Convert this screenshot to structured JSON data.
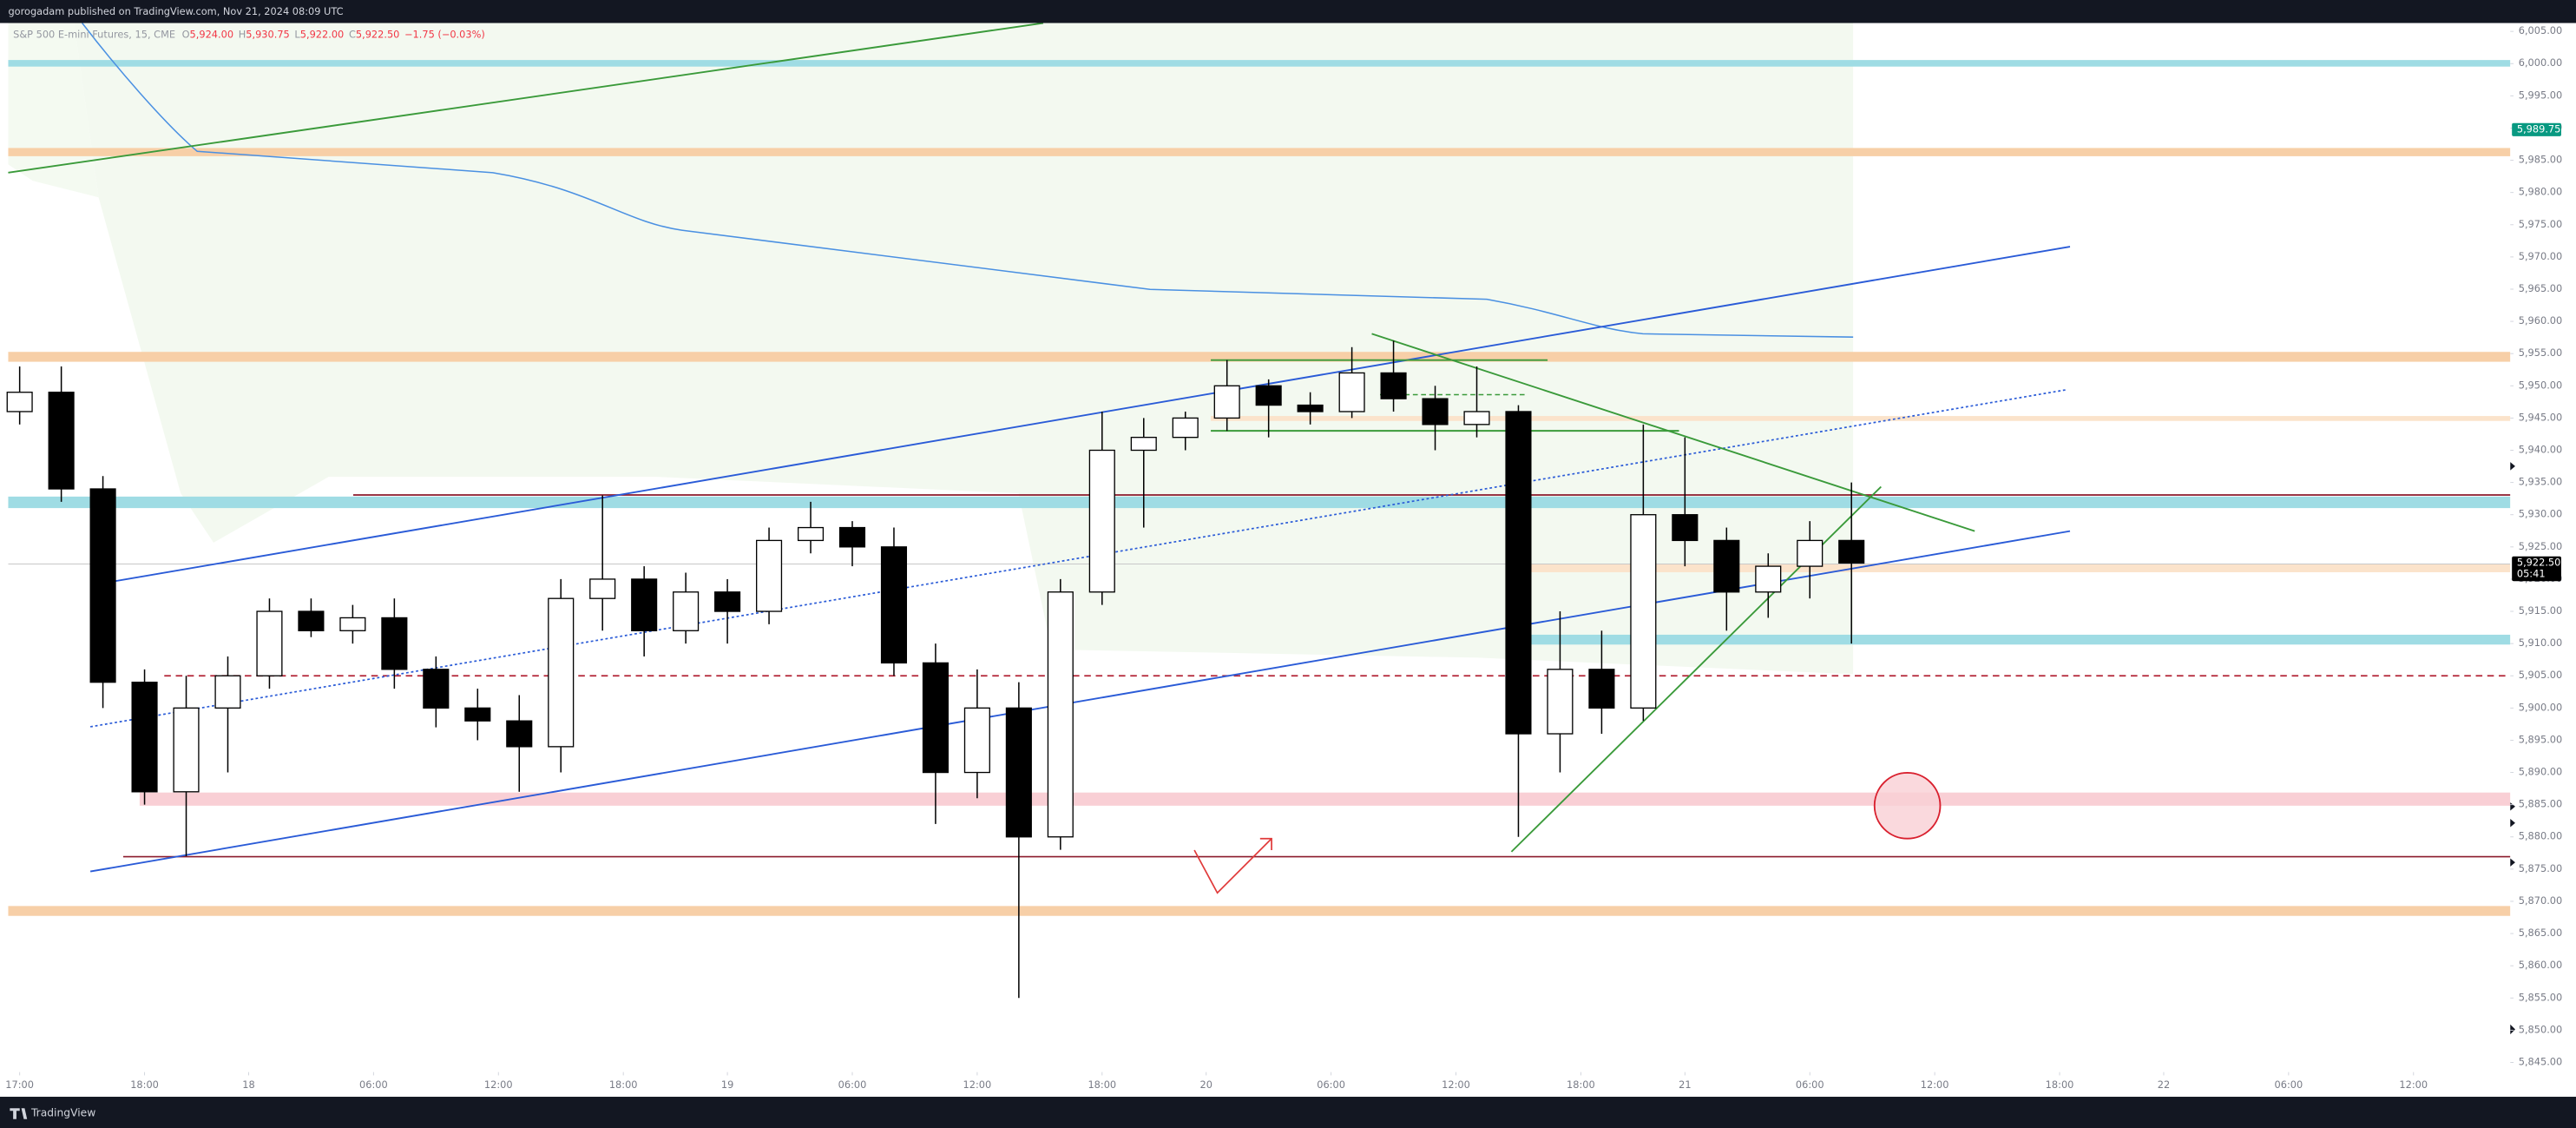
{
  "header": {
    "publisher": "gorogadam published on TradingView.com, Nov 21, 2024 08:09 UTC"
  },
  "footer": {
    "brand": "TradingView"
  },
  "chart_data": {
    "type": "candlestick",
    "title": "S&P 500 E-mini Futures, 15, CME",
    "legend": [
      [
        "O",
        "5,924.00"
      ],
      [
        "H",
        "5,930.75"
      ],
      [
        "L",
        "5,922.00"
      ],
      [
        "C",
        "5,922.50"
      ]
    ],
    "change": "−1.75 (−0.03%)",
    "up_color": "#ffffff",
    "down_color": "#000000",
    "outline_color": "#000000",
    "x": [
      0,
      2,
      4,
      6,
      8,
      10,
      12,
      14,
      16,
      18,
      20,
      22,
      24,
      26,
      28,
      30,
      32,
      34,
      36,
      38,
      40,
      42,
      44,
      46,
      48,
      50,
      52,
      54,
      56,
      58,
      60,
      62,
      64,
      66,
      68,
      70,
      72,
      74,
      76,
      78,
      80,
      82,
      84,
      86,
      88
    ],
    "open": [
      5946,
      5949,
      5934,
      5904,
      5887,
      5900,
      5905,
      5915,
      5912,
      5914,
      5906,
      5900,
      5898,
      5894,
      5917,
      5920,
      5912,
      5918,
      5915,
      5926,
      5928,
      5925,
      5907,
      5890,
      5900,
      5880,
      5918,
      5940,
      5942,
      5945,
      5950,
      5947,
      5946,
      5952,
      5948,
      5944,
      5946,
      5896,
      5906,
      5900,
      5930,
      5926,
      5918,
      5922,
      5926
    ],
    "high": [
      5953,
      5953,
      5936,
      5906,
      5905,
      5908,
      5917,
      5917,
      5916,
      5917,
      5908,
      5903,
      5902,
      5920,
      5933,
      5922,
      5921,
      5920,
      5928,
      5932,
      5929,
      5928,
      5910,
      5906,
      5904,
      5920,
      5946,
      5945,
      5946,
      5954,
      5951,
      5949,
      5956,
      5957,
      5950,
      5953,
      5947,
      5915,
      5912,
      5944,
      5942,
      5928,
      5924,
      5929,
      5935
    ],
    "low": [
      5944,
      5932,
      5900,
      5885,
      5877,
      5890,
      5903,
      5911,
      5910,
      5903,
      5897,
      5895,
      5887,
      5890,
      5912,
      5908,
      5910,
      5910,
      5913,
      5924,
      5922,
      5905,
      5882,
      5886,
      5855,
      5878,
      5916,
      5928,
      5940,
      5943,
      5942,
      5944,
      5945,
      5946,
      5940,
      5942,
      5880,
      5890,
      5896,
      5898,
      5922,
      5912,
      5914,
      5917,
      5910
    ],
    "close": [
      5949,
      5934,
      5904,
      5887,
      5900,
      5905,
      5915,
      5912,
      5914,
      5906,
      5900,
      5898,
      5894,
      5917,
      5920,
      5912,
      5918,
      5915,
      5926,
      5928,
      5925,
      5907,
      5890,
      5900,
      5880,
      5918,
      5940,
      5942,
      5945,
      5950,
      5947,
      5946,
      5952,
      5948,
      5944,
      5946,
      5896,
      5906,
      5900,
      5930,
      5926,
      5918,
      5922,
      5926,
      5922.5
    ],
    "xlim": [
      -0.55,
      119.65
    ],
    "xticks": [
      {
        "value": 0,
        "label": "17:00"
      },
      {
        "value": 6,
        "label": "18:00"
      },
      {
        "value": 11,
        "label": "18"
      },
      {
        "value": 17,
        "label": "06:00"
      },
      {
        "value": 23,
        "label": "12:00"
      },
      {
        "value": 29,
        "label": "18:00"
      },
      {
        "value": 34,
        "label": "19"
      },
      {
        "value": 40,
        "label": "06:00"
      },
      {
        "value": 46,
        "label": "12:00"
      },
      {
        "value": 52,
        "label": "18:00"
      },
      {
        "value": 57,
        "label": "20"
      },
      {
        "value": 63,
        "label": "06:00"
      },
      {
        "value": 69,
        "label": "12:00"
      },
      {
        "value": 75,
        "label": "18:00"
      },
      {
        "value": 80,
        "label": "21"
      },
      {
        "value": 86,
        "label": "06:00"
      },
      {
        "value": 92,
        "label": "12:00"
      },
      {
        "value": 98,
        "label": "18:00"
      },
      {
        "value": 103,
        "label": "22"
      },
      {
        "value": 109,
        "label": "06:00"
      },
      {
        "value": 115,
        "label": "12:00"
      }
    ],
    "ylim": [
      5843.5,
      6006.3
    ],
    "yticks": [
      {
        "value": 5845,
        "label": "5,845.00"
      },
      {
        "value": 5850,
        "label": "5,850.00"
      },
      {
        "value": 5855,
        "label": "5,855.00"
      },
      {
        "value": 5860,
        "label": "5,860.00"
      },
      {
        "value": 5865,
        "label": "5,865.00"
      },
      {
        "value": 5870,
        "label": "5,870.00"
      },
      {
        "value": 5875,
        "label": "5,875.00"
      },
      {
        "value": 5880,
        "label": "5,880.00"
      },
      {
        "value": 5885,
        "label": "5,885.00"
      },
      {
        "value": 5890,
        "label": "5,890.00"
      },
      {
        "value": 5895,
        "label": "5,895.00"
      },
      {
        "value": 5900,
        "label": "5,900.00"
      },
      {
        "value": 5905,
        "label": "5,905.00"
      },
      {
        "value": 5910,
        "label": "5,910.00"
      },
      {
        "value": 5915,
        "label": "5,915.00"
      },
      {
        "value": 5920,
        "label": "5,920.00"
      },
      {
        "value": 5925,
        "label": "5,925.00"
      },
      {
        "value": 5930,
        "label": "5,930.00"
      },
      {
        "value": 5935,
        "label": "5,935.00"
      },
      {
        "value": 5940,
        "label": "5,940.00"
      },
      {
        "value": 5945,
        "label": "5,945.00"
      },
      {
        "value": 5950,
        "label": "5,950.00"
      },
      {
        "value": 5955,
        "label": "5,955.00"
      },
      {
        "value": 5960,
        "label": "5,960.00"
      },
      {
        "value": 5965,
        "label": "5,965.00"
      },
      {
        "value": 5970,
        "label": "5,970.00"
      },
      {
        "value": 5975,
        "label": "5,975.00"
      },
      {
        "value": 5980,
        "label": "5,980.00"
      },
      {
        "value": 5985,
        "label": "5,985.00"
      },
      {
        "value": 5990,
        "label": "5,990.00"
      },
      {
        "value": 5995,
        "label": "5,995.00"
      },
      {
        "value": 6000,
        "label": "6,000.00"
      },
      {
        "value": 6005,
        "label": "6,005.00"
      }
    ],
    "grid": false,
    "last_price": {
      "value": 5922.5,
      "label": "5,922.50",
      "countdown": "05:41",
      "color": "#000000"
    },
    "price_tag": {
      "value": 5989.75,
      "label": "5,989.75",
      "color": "#089981"
    }
  }
}
